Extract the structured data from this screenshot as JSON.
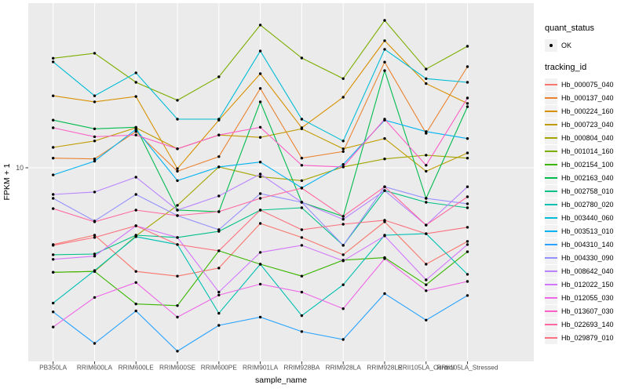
{
  "figure": {
    "colors": {
      "panel_bg": "#EBEBEB",
      "grid": "#FFFFFF",
      "tick": "#333333",
      "axis_text": "#4D4D4D",
      "axis_title": "#000000",
      "legend_key_bg": "#F2F2F2",
      "point": "#000000"
    },
    "legend": {
      "quant_status_title": "quant_status",
      "quant_status_items": [
        {
          "label": "OK"
        }
      ],
      "tracking_title": "tracking_id"
    }
  },
  "chart_data": {
    "type": "line",
    "title": "",
    "xlabel": "sample_name",
    "ylabel": "FPKM + 1",
    "y_scale": "log10",
    "y_ticks": [
      10
    ],
    "ylim": [
      1.03,
      69
    ],
    "grid": "major-only",
    "legend_position": "right",
    "point_marker": "black dot (quant_status OK)",
    "quant_status": "OK",
    "categories": [
      "PB350LA",
      "RRIM600LA",
      "RRIM600LE",
      "RRIM600SE",
      "RRIM600PE",
      "RRIM901LA",
      "RRIM928BA",
      "RRIM928LA",
      "RRIM928LE",
      "RRII105LA_Control",
      "RRII105LA_Stressed"
    ],
    "series": [
      {
        "name": "Hb_000075_040",
        "color": "#F8766D",
        "values": [
          4.06,
          4.53,
          2.96,
          2.8,
          3.08,
          5.2,
          4.41,
          3.6,
          5.3,
          3.22,
          4.21
        ]
      },
      {
        "name": "Hb_000137_040",
        "color": "#EA8331",
        "values": [
          11.2,
          11.1,
          15.3,
          9.6,
          11.4,
          25.4,
          11.2,
          12.1,
          34.6,
          15.0,
          32.8
        ]
      },
      {
        "name": "Hb_000224_160",
        "color": "#D89000",
        "values": [
          23.3,
          21.7,
          23.1,
          9.9,
          17.5,
          30.2,
          16.0,
          22.9,
          44.5,
          26.9,
          21.3
        ]
      },
      {
        "name": "Hb_000723_040",
        "color": "#C09B00",
        "values": [
          12.7,
          13.7,
          16.0,
          12.5,
          14.7,
          14.3,
          15.8,
          12.5,
          14.1,
          9.6,
          11.9
        ]
      },
      {
        "name": "Hb_000804_040",
        "color": "#A3A500",
        "values": [
          2.93,
          2.96,
          4.49,
          6.43,
          10.1,
          9.0,
          8.6,
          10.1,
          11.1,
          11.6,
          11.2
        ]
      },
      {
        "name": "Hb_001014_160",
        "color": "#7CAE00",
        "values": [
          36.2,
          38.4,
          27.3,
          22.1,
          29.1,
          53.5,
          36.3,
          28.5,
          56.5,
          31.9,
          41.7
        ]
      },
      {
        "name": "Hb_002154_100",
        "color": "#39B600",
        "values": [
          2.93,
          2.96,
          2.02,
          1.98,
          3.77,
          3.22,
          2.8,
          3.38,
          3.48,
          2.53,
          3.73
        ]
      },
      {
        "name": "Hb_002163_040",
        "color": "#00BB4E",
        "values": [
          17.5,
          15.8,
          16.1,
          6.08,
          5.97,
          21.7,
          6.67,
          5.65,
          31.3,
          6.98,
          20.5
        ]
      },
      {
        "name": "Hb_002758_010",
        "color": "#00C087",
        "values": [
          3.6,
          3.63,
          4.53,
          4.41,
          4.74,
          6.08,
          6.25,
          4.02,
          7.65,
          6.67,
          6.25
        ]
      },
      {
        "name": "Hb_002780_020",
        "color": "#00C0B2",
        "values": [
          2.04,
          2.99,
          4.45,
          4.06,
          1.81,
          3.22,
          1.76,
          2.53,
          4.53,
          4.61,
          2.86
        ]
      },
      {
        "name": "Hb_003440_060",
        "color": "#00BCD6",
        "values": [
          34.7,
          23.3,
          30.5,
          17.7,
          17.7,
          39.4,
          17.7,
          13.7,
          40.2,
          28.5,
          27.3
        ]
      },
      {
        "name": "Hb_003513_010",
        "color": "#00B3F2",
        "values": [
          9.2,
          10.8,
          15.7,
          8.6,
          10.1,
          10.7,
          7.9,
          10.4,
          17.5,
          15.3,
          14.1
        ]
      },
      {
        "name": "Hb_004310_140",
        "color": "#29A3FF",
        "values": [
          1.84,
          1.27,
          1.86,
          1.16,
          1.57,
          1.73,
          1.46,
          1.33,
          2.28,
          1.67,
          2.23
        ]
      },
      {
        "name": "Hb_004330_090",
        "color": "#9590FF",
        "values": [
          6.98,
          5.35,
          7.31,
          5.7,
          4.83,
          7.38,
          6.67,
          4.02,
          8.0,
          6.98,
          6.55
        ]
      },
      {
        "name": "Hb_008642_040",
        "color": "#B983FF",
        "values": [
          7.31,
          7.52,
          8.95,
          6.08,
          7.18,
          9.29,
          6.67,
          5.46,
          7.65,
          5.1,
          8.0
        ]
      },
      {
        "name": "Hb_012022_150",
        "color": "#D376FB",
        "values": [
          3.41,
          3.54,
          5.06,
          4.41,
          2.32,
          3.7,
          4.02,
          3.35,
          4.49,
          2.68,
          4.06
        ]
      },
      {
        "name": "Hb_012055_030",
        "color": "#EE67E7",
        "values": [
          1.54,
          2.18,
          2.6,
          1.73,
          2.24,
          2.55,
          2.32,
          1.91,
          3.44,
          2.36,
          2.63
        ]
      },
      {
        "name": "Hb_013607_030",
        "color": "#FB61C7",
        "values": [
          16.0,
          14.4,
          14.7,
          12.5,
          14.7,
          16.1,
          10.3,
          10.1,
          17.7,
          10.3,
          22.7
        ]
      },
      {
        "name": "Hb_022693_140",
        "color": "#FF68A1",
        "values": [
          6.19,
          5.3,
          6.08,
          5.7,
          5.97,
          6.98,
          7.87,
          5.65,
          8.0,
          5.1,
          7.11
        ]
      },
      {
        "name": "Hb_029879_010",
        "color": "#FC717F",
        "values": [
          4.02,
          4.41,
          5.06,
          4.06,
          3.77,
          6.08,
          4.83,
          5.15,
          5.4,
          4.61,
          4.97
        ]
      }
    ]
  }
}
